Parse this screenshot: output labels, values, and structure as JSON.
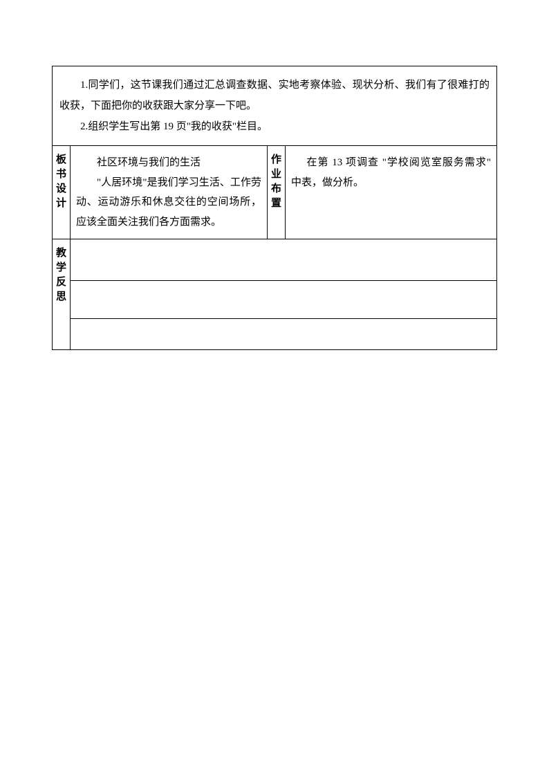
{
  "document": {
    "background_color": "#ffffff",
    "text_color": "#000000",
    "border_color": "#000000",
    "font_family": "SimSun",
    "font_size": 15,
    "line_height": 2.0
  },
  "intro": {
    "paragraph1": "1.同学们，这节课我们通过汇总调查数据、实地考察体验、现状分析、我们有了很难打的收获，下面把你的收获跟大家分享一下吧。",
    "paragraph2": "2.组织学生写出第 19 页\"我的收获\"栏目。"
  },
  "board_design": {
    "label": "板书设计",
    "title": "社区环境与我们的生活",
    "content": "\"人居环境\"是我们学习生活、工作劳动、运动游乐和休息交往的空间场所， 应该全面关注我们各方面需求。"
  },
  "homework": {
    "label": "作业布置",
    "content": "在第 13 项调查 \"学校阅览室服务需求\" 中表，做分析。"
  },
  "reflection": {
    "label": "教学反思"
  }
}
